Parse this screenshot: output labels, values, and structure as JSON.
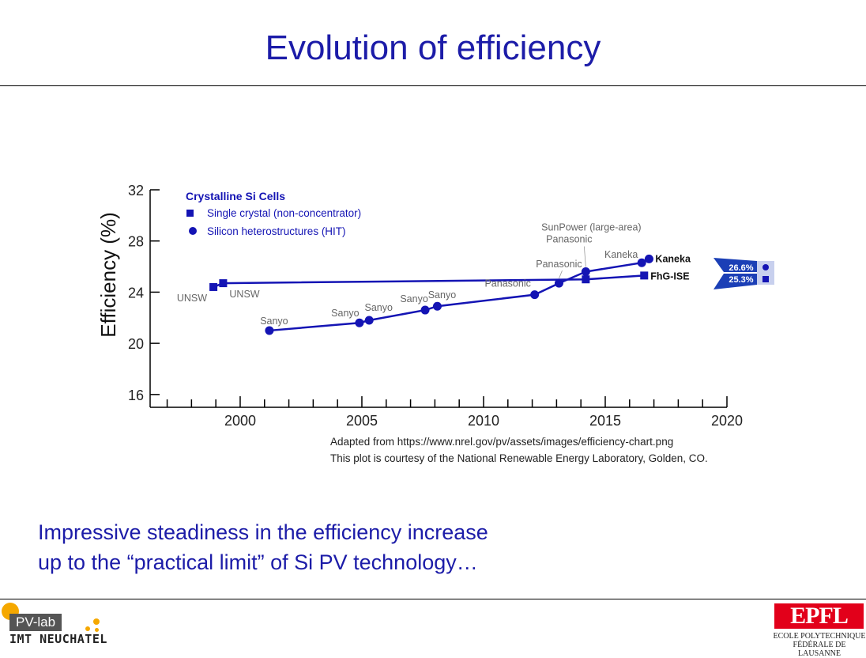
{
  "slide": {
    "title": "Evolution of efficiency",
    "caption_lines": [
      "Adapted from https://www.nrel.gov/pv/assets/images/efficiency-chart.png",
      "This plot is courtesy of the National Renewable Energy Laboratory, Golden, CO."
    ],
    "summary_lines": [
      "Impressive steadiness in the efficiency increase",
      "up to the “practical limit” of Si PV technology…"
    ]
  },
  "footer": {
    "pvlab_text": "PV-lab",
    "imt_text": "IMT NEUCHATEL",
    "epfl_logo_text": "EPFL",
    "epfl_line1": "ECOLE POLYTECHNIQUE",
    "epfl_line2": "FÉDÉRALE DE LAUSANNE"
  },
  "chart_data": {
    "type": "line",
    "legend_title": "Crystalline Si Cells",
    "xlabel": "",
    "ylabel": "Efficiency (%)",
    "xlim": [
      1996.3,
      2020
    ],
    "ylim": [
      15,
      32
    ],
    "x_ticks": [
      2000,
      2005,
      2010,
      2015,
      2020
    ],
    "y_ticks": [
      16,
      20,
      24,
      28,
      32
    ],
    "colors": {
      "series": "#1414b4",
      "badge": "#1b3fb6",
      "badge_bg": "#c8d0ee",
      "label": "#666666"
    },
    "series": [
      {
        "name": "Single crystal (non-concentrator)",
        "marker": "square",
        "points": [
          {
            "x": 1998.9,
            "y": 24.4,
            "label": "UNSW"
          },
          {
            "x": 1999.3,
            "y": 24.7,
            "label": "UNSW"
          },
          {
            "x": 2014.2,
            "y": 25.0,
            "label": ""
          },
          {
            "x": 2016.6,
            "y": 25.3,
            "label": "FhG-ISE"
          }
        ]
      },
      {
        "name": "Silicon heterostructures (HIT)",
        "marker": "circle",
        "points": [
          {
            "x": 2001.2,
            "y": 21.0,
            "label": "Sanyo"
          },
          {
            "x": 2004.9,
            "y": 21.6,
            "label": "Sanyo"
          },
          {
            "x": 2005.3,
            "y": 21.8,
            "label": "Sanyo"
          },
          {
            "x": 2007.6,
            "y": 22.6,
            "label": "Sanyo"
          },
          {
            "x": 2008.1,
            "y": 22.9,
            "label": "Sanyo"
          },
          {
            "x": 2012.1,
            "y": 23.8,
            "label": "Panasonic"
          },
          {
            "x": 2013.1,
            "y": 24.7,
            "label": "Panasonic"
          },
          {
            "x": 2014.2,
            "y": 25.6,
            "label": "SunPower (large-area) / Panasonic"
          },
          {
            "x": 2016.5,
            "y": 26.3,
            "label": "Kaneka"
          },
          {
            "x": 2016.8,
            "y": 26.6,
            "label": "Kaneka"
          }
        ]
      }
    ],
    "record_badges": [
      {
        "value": "26.6%",
        "marker": "circle"
      },
      {
        "value": "25.3%",
        "marker": "square"
      }
    ]
  }
}
